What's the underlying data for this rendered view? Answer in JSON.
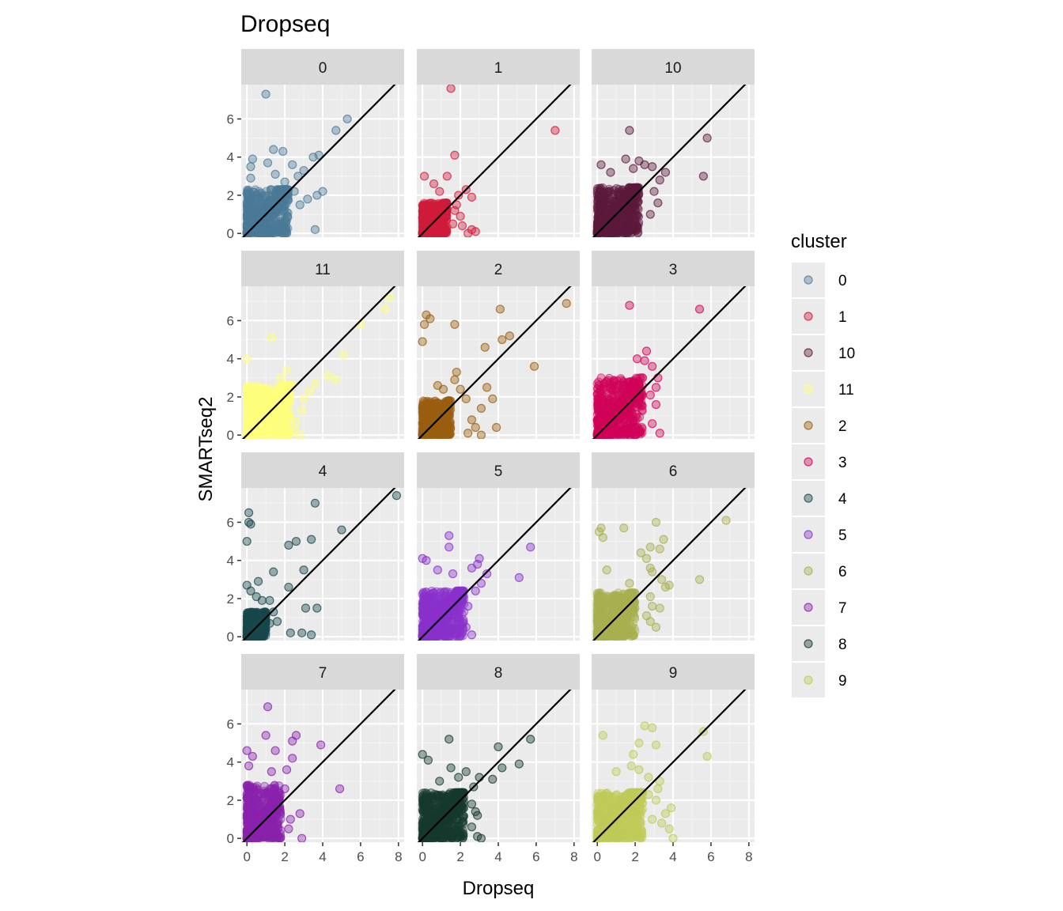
{
  "chart_data": {
    "type": "scatter",
    "title": "Dropseq",
    "xlabel": "Dropseq",
    "ylabel": "SMARTseq2",
    "xlim": [
      -0.3,
      8.3
    ],
    "ylim": [
      -0.2,
      7.8
    ],
    "x_ticks": [
      0,
      2,
      4,
      6,
      8
    ],
    "y_ticks": [
      0,
      2,
      4,
      6
    ],
    "x_tick_labels": [
      "0",
      "2",
      "4",
      "6",
      "8"
    ],
    "y_tick_labels": [
      "0",
      "2",
      "4",
      "6"
    ],
    "reference_line": "y = x",
    "grid": true,
    "legend": {
      "title": "cluster",
      "position": "right",
      "entries": [
        {
          "label": "0",
          "color": "#4a7a98"
        },
        {
          "label": "1",
          "color": "#d01c3b"
        },
        {
          "label": "10",
          "color": "#5c1a3c"
        },
        {
          "label": "11",
          "color": "#ffff7e"
        },
        {
          "label": "2",
          "color": "#9a5e10"
        },
        {
          "label": "3",
          "color": "#d0045a"
        },
        {
          "label": "4",
          "color": "#17484d"
        },
        {
          "label": "5",
          "color": "#8a31cc"
        },
        {
          "label": "6",
          "color": "#a8b050"
        },
        {
          "label": "7",
          "color": "#8a22ad"
        },
        {
          "label": "8",
          "color": "#163a2e"
        },
        {
          "label": "9",
          "color": "#bfca5a"
        }
      ]
    },
    "panels": [
      {
        "cluster": "0",
        "color": "#4a7a98",
        "dense_x_max": 2.2,
        "dense_y_max": 2.3,
        "points": [
          [
            1.0,
            7.3
          ],
          [
            5.3,
            6.0
          ],
          [
            4.7,
            5.4
          ],
          [
            1.4,
            4.4
          ],
          [
            1.9,
            4.3
          ],
          [
            3.8,
            4.1
          ],
          [
            3.5,
            4.0
          ],
          [
            0.3,
            3.9
          ],
          [
            1.1,
            3.7
          ],
          [
            2.4,
            3.6
          ],
          [
            0.2,
            3.5
          ],
          [
            3.0,
            3.3
          ],
          [
            2.7,
            3.0
          ],
          [
            4.0,
            2.2
          ],
          [
            3.7,
            2.0
          ],
          [
            3.2,
            1.8
          ],
          [
            2.8,
            1.5
          ],
          [
            2.5,
            2.2
          ],
          [
            3.6,
            0.2
          ],
          [
            0.2,
            2.9
          ],
          [
            1.5,
            3.1
          ],
          [
            2.0,
            2.7
          ]
        ]
      },
      {
        "cluster": "1",
        "color": "#d01c3b",
        "dense_x_max": 1.3,
        "dense_y_max": 1.6,
        "points": [
          [
            1.5,
            7.6
          ],
          [
            7.0,
            5.4
          ],
          [
            1.7,
            4.1
          ],
          [
            1.3,
            3.0
          ],
          [
            0.1,
            3.0
          ],
          [
            0.6,
            2.6
          ],
          [
            2.3,
            2.3
          ],
          [
            0.9,
            2.2
          ],
          [
            2.6,
            1.9
          ],
          [
            1.8,
            1.5
          ],
          [
            1.7,
            1.2
          ],
          [
            2.0,
            0.9
          ],
          [
            2.1,
            0.4
          ],
          [
            2.6,
            0.2
          ],
          [
            2.8,
            0.1
          ],
          [
            2.4,
            0.0
          ],
          [
            1.6,
            0.5
          ],
          [
            1.9,
            2.0
          ]
        ]
      },
      {
        "cluster": "10",
        "color": "#5c1a3c",
        "dense_x_max": 2.2,
        "dense_y_max": 2.4,
        "points": [
          [
            1.7,
            5.4
          ],
          [
            5.8,
            5.0
          ],
          [
            5.6,
            3.0
          ],
          [
            1.5,
            3.9
          ],
          [
            2.2,
            3.8
          ],
          [
            3.6,
            3.2
          ],
          [
            2.9,
            3.5
          ],
          [
            3.3,
            2.8
          ],
          [
            0.2,
            3.6
          ],
          [
            3.0,
            2.2
          ],
          [
            3.2,
            1.6
          ],
          [
            2.8,
            1.0
          ],
          [
            0.7,
            3.2
          ],
          [
            2.5,
            3.6
          ],
          [
            1.9,
            3.4
          ]
        ]
      },
      {
        "cluster": "11",
        "color": "#ffff7e",
        "dense_x_max": 2.3,
        "dense_y_max": 2.6,
        "points": [
          [
            7.5,
            7.2
          ],
          [
            7.3,
            6.6
          ],
          [
            6.0,
            5.8
          ],
          [
            1.3,
            5.1
          ],
          [
            5.1,
            4.2
          ],
          [
            0.0,
            4.0
          ],
          [
            2.1,
            3.4
          ],
          [
            4.3,
            3.1
          ],
          [
            3.6,
            2.7
          ],
          [
            4.7,
            2.9
          ],
          [
            2.4,
            2.6
          ],
          [
            3.0,
            1.9
          ],
          [
            2.6,
            0.7
          ],
          [
            2.8,
            0.0
          ],
          [
            2.5,
            0.3
          ],
          [
            1.8,
            3.0
          ],
          [
            3.3,
            2.3
          ],
          [
            2.9,
            1.3
          ]
        ]
      },
      {
        "cluster": "2",
        "color": "#9a5e10",
        "dense_x_max": 1.5,
        "dense_y_max": 1.8,
        "points": [
          [
            0.2,
            6.3
          ],
          [
            0.4,
            6.1
          ],
          [
            0.1,
            5.8
          ],
          [
            1.7,
            5.8
          ],
          [
            4.1,
            6.6
          ],
          [
            7.6,
            6.9
          ],
          [
            4.6,
            5.2
          ],
          [
            4.2,
            5.0
          ],
          [
            3.3,
            4.6
          ],
          [
            0.0,
            4.9
          ],
          [
            5.9,
            3.6
          ],
          [
            1.8,
            3.3
          ],
          [
            1.7,
            2.9
          ],
          [
            2.0,
            2.4
          ],
          [
            3.4,
            2.5
          ],
          [
            1.1,
            2.4
          ],
          [
            3.7,
            1.9
          ],
          [
            3.1,
            1.4
          ],
          [
            2.6,
            0.8
          ],
          [
            3.1,
            0.0
          ],
          [
            3.9,
            0.4
          ],
          [
            2.4,
            0.1
          ],
          [
            0.8,
            2.6
          ],
          [
            2.3,
            1.9
          ],
          [
            2.8,
            0.4
          ]
        ]
      },
      {
        "cluster": "3",
        "color": "#d0045a",
        "dense_x_max": 2.4,
        "dense_y_max": 3.0,
        "points": [
          [
            1.7,
            6.8
          ],
          [
            5.4,
            6.6
          ],
          [
            2.6,
            4.4
          ],
          [
            2.1,
            4.0
          ],
          [
            2.9,
            3.6
          ],
          [
            3.2,
            3.0
          ],
          [
            2.8,
            2.1
          ],
          [
            3.1,
            1.6
          ],
          [
            3.3,
            0.1
          ],
          [
            2.9,
            0.6
          ],
          [
            3.1,
            2.5
          ],
          [
            2.5,
            3.9
          ]
        ]
      },
      {
        "cluster": "4",
        "color": "#17484d",
        "dense_x_max": 1.0,
        "dense_y_max": 1.3,
        "points": [
          [
            0.1,
            6.5
          ],
          [
            0.1,
            6.0
          ],
          [
            0.2,
            5.9
          ],
          [
            3.6,
            7.0
          ],
          [
            7.9,
            7.4
          ],
          [
            5.0,
            5.6
          ],
          [
            2.6,
            5.0
          ],
          [
            2.2,
            4.8
          ],
          [
            3.4,
            5.1
          ],
          [
            0.0,
            5.0
          ],
          [
            1.4,
            3.4
          ],
          [
            3.0,
            3.5
          ],
          [
            0.6,
            2.9
          ],
          [
            0.0,
            2.7
          ],
          [
            0.2,
            2.4
          ],
          [
            2.2,
            2.6
          ],
          [
            1.2,
            1.9
          ],
          [
            0.8,
            1.9
          ],
          [
            3.1,
            1.5
          ],
          [
            3.7,
            1.5
          ],
          [
            1.4,
            1.3
          ],
          [
            1.6,
            0.8
          ],
          [
            1.2,
            0.7
          ],
          [
            2.3,
            0.2
          ],
          [
            2.9,
            0.2
          ],
          [
            3.4,
            0.1
          ],
          [
            1.0,
            0.4
          ],
          [
            0.5,
            2.1
          ]
        ]
      },
      {
        "cluster": "5",
        "color": "#8a31cc",
        "dense_x_max": 2.2,
        "dense_y_max": 2.4,
        "points": [
          [
            1.4,
            5.3
          ],
          [
            1.4,
            4.7
          ],
          [
            5.7,
            4.7
          ],
          [
            5.1,
            3.1
          ],
          [
            3.0,
            4.1
          ],
          [
            2.9,
            3.8
          ],
          [
            0.0,
            4.1
          ],
          [
            0.2,
            4.0
          ],
          [
            3.4,
            3.3
          ],
          [
            3.1,
            2.8
          ],
          [
            1.6,
            3.3
          ],
          [
            0.8,
            3.5
          ],
          [
            2.6,
            3.6
          ],
          [
            2.8,
            2.4
          ],
          [
            2.4,
            1.6
          ],
          [
            2.3,
            0.5
          ],
          [
            2.6,
            0.1
          ]
        ]
      },
      {
        "cluster": "6",
        "color": "#a8b050",
        "dense_x_max": 2.0,
        "dense_y_max": 2.3,
        "points": [
          [
            0.2,
            5.7
          ],
          [
            0.1,
            5.5
          ],
          [
            0.3,
            5.2
          ],
          [
            3.1,
            6.0
          ],
          [
            6.8,
            6.1
          ],
          [
            1.4,
            5.7
          ],
          [
            3.5,
            5.1
          ],
          [
            2.8,
            4.7
          ],
          [
            3.3,
            4.6
          ],
          [
            2.6,
            4.1
          ],
          [
            2.8,
            3.6
          ],
          [
            2.9,
            3.4
          ],
          [
            3.4,
            3.0
          ],
          [
            3.8,
            2.7
          ],
          [
            5.4,
            3.0
          ],
          [
            3.6,
            2.6
          ],
          [
            2.8,
            2.1
          ],
          [
            2.9,
            1.6
          ],
          [
            3.3,
            1.5
          ],
          [
            2.8,
            0.8
          ],
          [
            3.1,
            0.5
          ],
          [
            2.6,
            1.1
          ],
          [
            2.3,
            4.4
          ],
          [
            0.5,
            3.5
          ],
          [
            1.7,
            2.8
          ]
        ]
      },
      {
        "cluster": "7",
        "color": "#8a22ad",
        "dense_x_max": 1.8,
        "dense_y_max": 2.8,
        "points": [
          [
            1.1,
            6.9
          ],
          [
            1.0,
            5.4
          ],
          [
            2.6,
            5.4
          ],
          [
            2.4,
            5.1
          ],
          [
            3.9,
            4.9
          ],
          [
            1.5,
            4.6
          ],
          [
            2.4,
            4.2
          ],
          [
            2.1,
            3.6
          ],
          [
            4.9,
            2.6
          ],
          [
            0.0,
            4.6
          ],
          [
            0.3,
            4.3
          ],
          [
            2.8,
            1.3
          ],
          [
            2.3,
            1.0
          ],
          [
            2.9,
            0.0
          ],
          [
            2.2,
            0.5
          ],
          [
            2.0,
            2.6
          ],
          [
            1.3,
            3.5
          ],
          [
            0.1,
            3.8
          ]
        ]
      },
      {
        "cluster": "8",
        "color": "#163a2e",
        "dense_x_max": 2.2,
        "dense_y_max": 2.4,
        "points": [
          [
            5.7,
            5.2
          ],
          [
            4.0,
            4.8
          ],
          [
            5.1,
            3.9
          ],
          [
            4.2,
            3.7
          ],
          [
            1.4,
            5.2
          ],
          [
            3.7,
            3.1
          ],
          [
            0.0,
            4.4
          ],
          [
            0.3,
            4.1
          ],
          [
            1.5,
            3.7
          ],
          [
            2.3,
            3.5
          ],
          [
            1.9,
            3.2
          ],
          [
            3.0,
            3.2
          ],
          [
            2.7,
            2.7
          ],
          [
            2.6,
            1.8
          ],
          [
            2.8,
            1.4
          ],
          [
            2.9,
            1.2
          ],
          [
            2.6,
            0.6
          ],
          [
            2.9,
            0.1
          ],
          [
            3.1,
            0.0
          ],
          [
            1.5,
            0.1
          ],
          [
            0.9,
            3.0
          ]
        ]
      },
      {
        "cluster": "9",
        "color": "#bfca5a",
        "dense_x_max": 2.4,
        "dense_y_max": 2.4,
        "points": [
          [
            2.5,
            5.9
          ],
          [
            2.9,
            5.8
          ],
          [
            5.6,
            5.6
          ],
          [
            0.3,
            5.4
          ],
          [
            2.2,
            5.0
          ],
          [
            3.1,
            4.9
          ],
          [
            1.9,
            4.4
          ],
          [
            5.8,
            4.3
          ],
          [
            1.8,
            3.8
          ],
          [
            2.2,
            3.6
          ],
          [
            2.7,
            3.2
          ],
          [
            3.3,
            3.0
          ],
          [
            3.2,
            2.6
          ],
          [
            2.7,
            2.3
          ],
          [
            3.1,
            2.0
          ],
          [
            3.9,
            1.6
          ],
          [
            3.6,
            1.3
          ],
          [
            3.4,
            0.8
          ],
          [
            4.0,
            0.0
          ],
          [
            3.8,
            0.5
          ],
          [
            2.9,
            1.0
          ],
          [
            1.0,
            3.5
          ]
        ]
      }
    ]
  }
}
